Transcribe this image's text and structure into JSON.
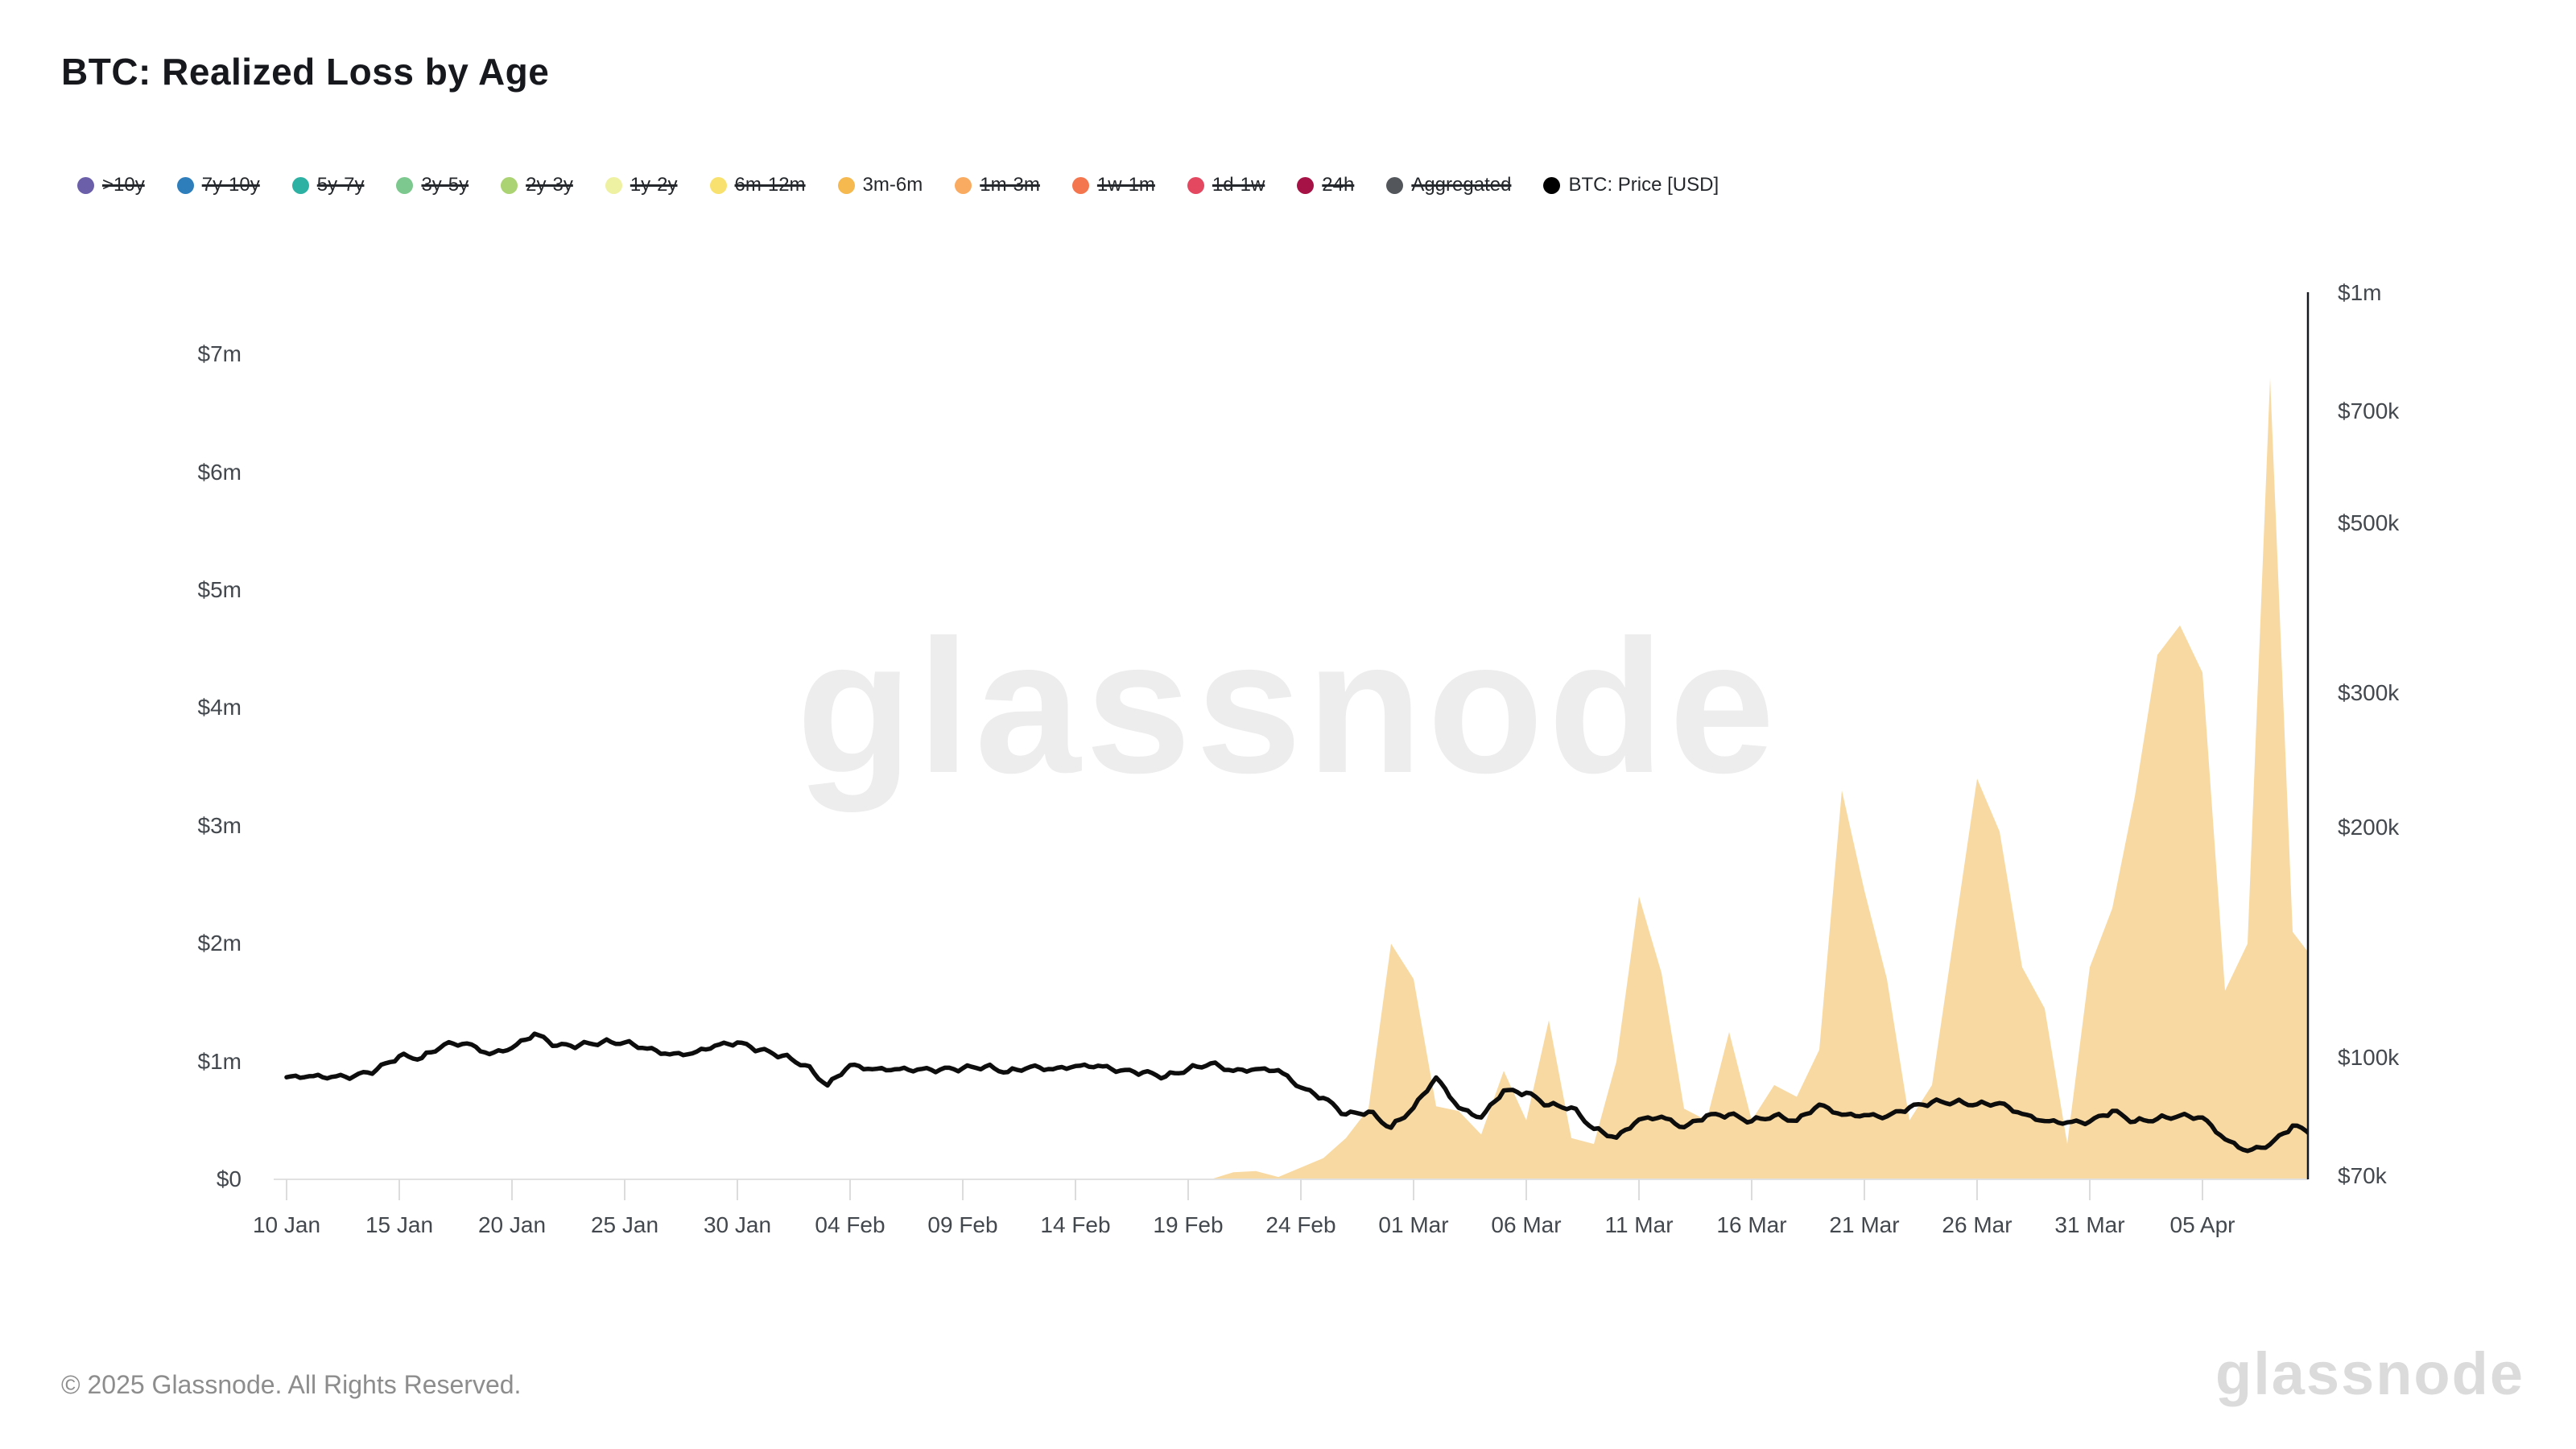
{
  "header": {
    "title": "BTC: Realized Loss by Age"
  },
  "watermark": "glassnode",
  "footer": {
    "copyright": "© 2025 Glassnode. All Rights Reserved.",
    "brand": "glassnode"
  },
  "legend": {
    "items": [
      {
        "label": ">10y",
        "color": "#6a5fa8",
        "struck": true
      },
      {
        "label": "7y-10y",
        "color": "#2e7ebc",
        "struck": true
      },
      {
        "label": "5y-7y",
        "color": "#2cb1a3",
        "struck": true
      },
      {
        "label": "3y-5y",
        "color": "#7dc88e",
        "struck": true
      },
      {
        "label": "2y-3y",
        "color": "#abd373",
        "struck": true
      },
      {
        "label": "1y-2y",
        "color": "#eef0a2",
        "struck": true
      },
      {
        "label": "6m-12m",
        "color": "#f8e16e",
        "struck": true
      },
      {
        "label": "3m-6m",
        "color": "#f5b94f",
        "struck": false
      },
      {
        "label": "1m-3m",
        "color": "#f9ab61",
        "struck": true
      },
      {
        "label": "1w-1m",
        "color": "#f4764f",
        "struck": true
      },
      {
        "label": "1d-1w",
        "color": "#e44760",
        "struck": true
      },
      {
        "label": "24h",
        "color": "#a61245",
        "struck": true
      },
      {
        "label": "Aggregated",
        "color": "#53575c",
        "struck": true
      },
      {
        "label": "BTC: Price [USD]",
        "color": "#000000",
        "struck": false
      }
    ]
  },
  "chart_data": {
    "type": "area",
    "title": "BTC: Realized Loss by Age",
    "grid": "off",
    "legend_position": "top",
    "x_axis": {
      "tick_labels": [
        "10 Jan",
        "15 Jan",
        "20 Jan",
        "25 Jan",
        "30 Jan",
        "04 Feb",
        "09 Feb",
        "14 Feb",
        "19 Feb",
        "24 Feb",
        "01 Mar",
        "06 Mar",
        "11 Mar",
        "16 Mar",
        "21 Mar",
        "26 Mar",
        "31 Mar",
        "05 Apr"
      ],
      "tick_interval_days": 5
    },
    "left_axis": {
      "title": "Realized Loss (USD)",
      "scale": "linear",
      "tick_labels": [
        "$0",
        "$1m",
        "$2m",
        "$3m",
        "$4m",
        "$5m",
        "$6m",
        "$7m"
      ],
      "tick_values_usd": [
        0,
        1000000,
        2000000,
        3000000,
        4000000,
        5000000,
        6000000,
        7000000
      ]
    },
    "right_axis": {
      "title": "BTC: Price [USD]",
      "scale": "log",
      "tick_labels": [
        "$70k",
        "$100k",
        "$200k",
        "$300k",
        "$500k",
        "$700k",
        "$1m"
      ],
      "tick_values_usd": [
        70000,
        100000,
        200000,
        300000,
        500000,
        700000,
        1000000
      ],
      "range_usd": [
        70000,
        1000000
      ]
    },
    "dates": [
      "10 Jan",
      "11 Jan",
      "12 Jan",
      "13 Jan",
      "14 Jan",
      "15 Jan",
      "16 Jan",
      "17 Jan",
      "18 Jan",
      "19 Jan",
      "20 Jan",
      "21 Jan",
      "22 Jan",
      "23 Jan",
      "24 Jan",
      "25 Jan",
      "26 Jan",
      "27 Jan",
      "28 Jan",
      "29 Jan",
      "30 Jan",
      "31 Jan",
      "01 Feb",
      "02 Feb",
      "03 Feb",
      "04 Feb",
      "05 Feb",
      "06 Feb",
      "07 Feb",
      "08 Feb",
      "09 Feb",
      "10 Feb",
      "11 Feb",
      "12 Feb",
      "13 Feb",
      "14 Feb",
      "15 Feb",
      "16 Feb",
      "17 Feb",
      "18 Feb",
      "19 Feb",
      "20 Feb",
      "21 Feb",
      "22 Feb",
      "23 Feb",
      "24 Feb",
      "25 Feb",
      "26 Feb",
      "27 Feb",
      "28 Feb",
      "01 Mar",
      "02 Mar",
      "03 Mar",
      "04 Mar",
      "05 Mar",
      "06 Mar",
      "07 Mar",
      "08 Mar",
      "09 Mar",
      "10 Mar",
      "11 Mar",
      "12 Mar",
      "13 Mar",
      "14 Mar",
      "15 Mar",
      "16 Mar",
      "17 Mar",
      "18 Mar",
      "19 Mar",
      "20 Mar",
      "21 Mar",
      "22 Mar",
      "23 Mar",
      "24 Mar",
      "25 Mar",
      "26 Mar",
      "27 Mar",
      "28 Mar",
      "29 Mar",
      "30 Mar",
      "31 Mar",
      "01 Apr",
      "02 Apr",
      "03 Apr",
      "04 Apr",
      "05 Apr",
      "06 Apr",
      "07 Apr",
      "08 Apr",
      "09 Apr",
      "10 Apr"
    ],
    "series": [
      {
        "name": "3m-6m",
        "type": "area",
        "axis": "left",
        "unit": "USD millions",
        "legend_color": "#f5b94f",
        "fill_color": "#f8d9a1",
        "values_musd": [
          0,
          0,
          0,
          0,
          0,
          0,
          0,
          0,
          0,
          0,
          0,
          0,
          0,
          0,
          0,
          0,
          0,
          0,
          0,
          0,
          0,
          0,
          0,
          0,
          0,
          0,
          0,
          0,
          0,
          0,
          0,
          0,
          0,
          0,
          0,
          0,
          0,
          0,
          0,
          0,
          0,
          0,
          0.06,
          0.07,
          0.02,
          0.1,
          0.18,
          0.35,
          0.6,
          2.0,
          1.7,
          0.62,
          0.58,
          0.38,
          0.92,
          0.5,
          1.35,
          0.35,
          0.3,
          1.0,
          2.4,
          1.75,
          0.6,
          0.5,
          1.25,
          0.5,
          0.8,
          0.7,
          1.1,
          3.3,
          2.45,
          1.7,
          0.5,
          0.8,
          2.1,
          3.4,
          2.95,
          1.8,
          1.45,
          0.3,
          1.8,
          2.3,
          3.25,
          4.45,
          4.7,
          4.3,
          1.6,
          2.0,
          6.8,
          2.1,
          1.85
        ]
      },
      {
        "name": "BTC: Price [USD]",
        "type": "line",
        "axis": "right",
        "unit": "USD thousands",
        "color": "#0d0d0d",
        "values_kusd": [
          94.3,
          94.6,
          94.4,
          94.6,
          96.5,
          100.5,
          99.9,
          104.1,
          104.4,
          101.1,
          103.0,
          107.5,
          103.7,
          103.9,
          104.8,
          104.7,
          102.8,
          101.0,
          101.3,
          103.7,
          104.7,
          102.4,
          100.6,
          97.8,
          92.0,
          97.8,
          96.6,
          96.6,
          96.5,
          96.5,
          96.9,
          97.4,
          95.8,
          97.3,
          96.6,
          97.5,
          97.6,
          96.2,
          95.7,
          94.5,
          96.6,
          98.3,
          96.1,
          96.6,
          96.3,
          91.4,
          88.6,
          84.3,
          85.0,
          81.0,
          86.0,
          94.2,
          86.0,
          83.5,
          90.6,
          90.0,
          86.7,
          86.1,
          80.7,
          78.6,
          83.0,
          83.7,
          81.1,
          84.0,
          84.3,
          82.6,
          84.0,
          82.7,
          86.8,
          84.2,
          84.1,
          83.8,
          86.1,
          87.5,
          87.5,
          86.9,
          87.2,
          84.4,
          82.6,
          82.3,
          82.5,
          85.2,
          82.5,
          83.2,
          84.0,
          83.5,
          78.2,
          75.5,
          77.0,
          81.5,
          79.5
        ]
      }
    ]
  }
}
